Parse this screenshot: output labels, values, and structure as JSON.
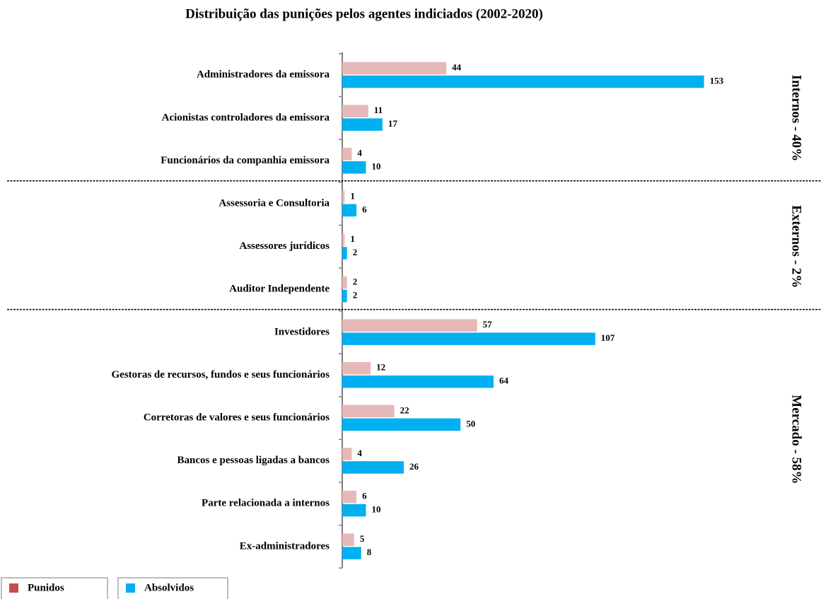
{
  "chart_data": {
    "type": "bar",
    "orientation": "horizontal",
    "title": "Distribuição das punições pelos agentes indiciados (2002-2020)",
    "categories": [
      "Administradores da emissora",
      "Acionistas controladores da emissora",
      "Funcionários da companhia emissora",
      "Assessoria e Consultoria",
      "Assessores jurídicos",
      "Auditor Independente",
      "Investidores",
      "Gestoras de recursos, fundos e seus funcionários",
      "Corretoras de valores e seus funcionários",
      "Bancos e pessoas ligadas a bancos",
      "Parte relacionada a internos",
      "Ex-administradores"
    ],
    "series": [
      {
        "name": "Punidos",
        "color": "#e6b8b7",
        "legend_color": "#c0504d",
        "values": [
          44,
          11,
          4,
          1,
          1,
          2,
          57,
          12,
          22,
          4,
          6,
          5
        ]
      },
      {
        "name": "Absolvidos",
        "color": "#00b0f0",
        "legend_color": "#00b0f0",
        "values": [
          153,
          17,
          10,
          6,
          2,
          2,
          107,
          64,
          50,
          26,
          10,
          8
        ]
      }
    ],
    "groups": [
      {
        "label": "Internos - 40%",
        "count": 3
      },
      {
        "label": "Externos - 2%",
        "count": 3
      },
      {
        "label": "Mercado - 58%",
        "count": 6
      }
    ],
    "xlim": [
      0,
      160
    ],
    "grid": false
  }
}
